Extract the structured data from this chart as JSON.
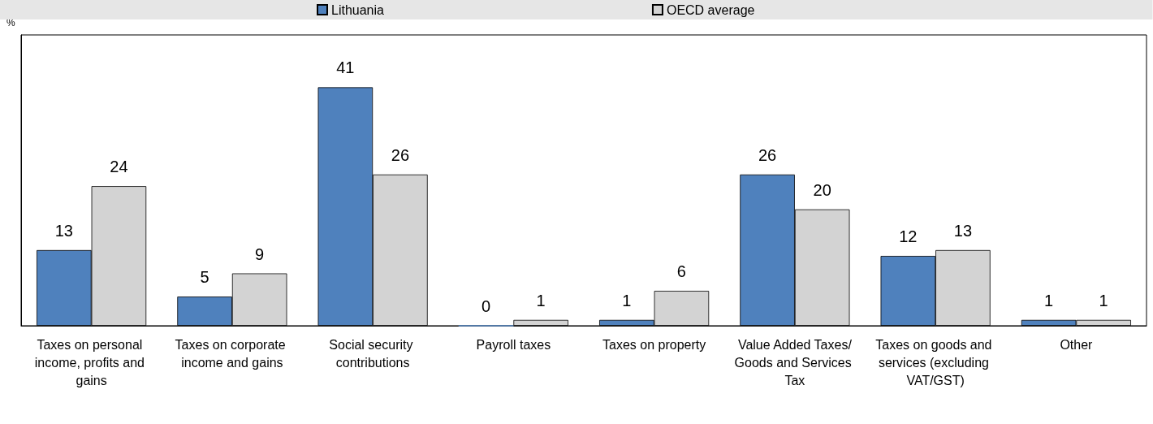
{
  "chart_data": {
    "type": "bar",
    "annotations": [
      "%"
    ],
    "categories": [
      "Taxes on personal income, profits and gains",
      "Taxes on corporate income and gains",
      "Social security contributions",
      "Payroll taxes",
      "Taxes on property",
      "Value Added Taxes/Goods and Services Tax",
      "Taxes on goods and services (excluding VAT/GST)",
      "Other"
    ],
    "series": [
      {
        "name": "Lithuania",
        "color": "#4f81bd",
        "values": [
          13,
          5,
          41,
          0,
          1,
          26,
          12,
          1
        ]
      },
      {
        "name": "OECD average",
        "color": "#d3d3d3",
        "values": [
          24,
          9,
          26,
          1,
          6,
          20,
          13,
          1
        ]
      }
    ],
    "data_labels": true,
    "legend": "top",
    "tick_labels": "x"
  }
}
